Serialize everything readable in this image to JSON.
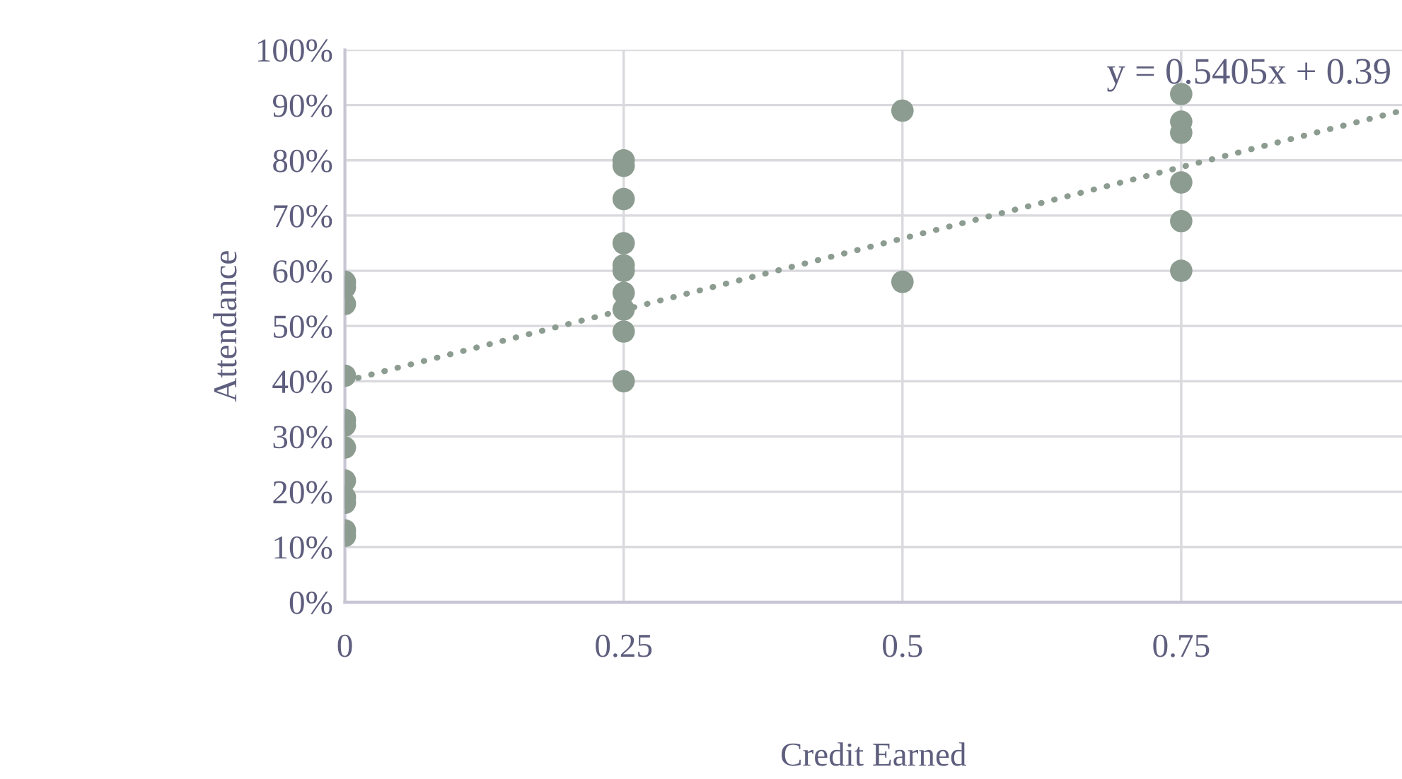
{
  "chart_data": {
    "type": "scatter",
    "xlabel": "Credit Earned",
    "ylabel": "Attendance",
    "annotations": [
      "y = 0.5405x + 0.39"
    ],
    "series": [
      {
        "color": "#8c9c90",
        "x": [
          0,
          0,
          0,
          0,
          0,
          0,
          0,
          0,
          0,
          0,
          0,
          0,
          0.25,
          0.25,
          0.25,
          0.25,
          0.25,
          0.25,
          0.25,
          0.25,
          0.25,
          0.25,
          0.5,
          0.5,
          0.75,
          0.75,
          0.75,
          0.75,
          0.75,
          0.75
        ],
        "values": [
          0.58,
          0.57,
          0.54,
          0.41,
          0.33,
          0.32,
          0.28,
          0.22,
          0.19,
          0.18,
          0.13,
          0.12,
          0.8,
          0.79,
          0.73,
          0.65,
          0.61,
          0.6,
          0.56,
          0.53,
          0.49,
          0.4,
          0.89,
          0.58,
          0.92,
          0.87,
          0.85,
          0.76,
          0.69,
          0.6
        ]
      },
      {
        "type": "line",
        "color": "#8c9c90",
        "line_style": "dotted",
        "x": [
          0,
          0.948
        ],
        "values": [
          0.4,
          0.89
        ]
      }
    ],
    "xlim": [
      0,
      0.948
    ],
    "xticks": [
      0,
      0.25,
      0.5,
      0.75
    ],
    "ylim": [
      0,
      1
    ],
    "yticks": [
      {
        "value": 0,
        "label": "0%"
      },
      {
        "value": 0.1,
        "label": "10%"
      },
      {
        "value": 0.2,
        "label": "20%"
      },
      {
        "value": 0.3,
        "label": "30%"
      },
      {
        "value": 0.4,
        "label": "40%"
      },
      {
        "value": 0.5,
        "label": "50%"
      },
      {
        "value": 0.6,
        "label": "60%"
      },
      {
        "value": 0.7,
        "label": "70%"
      },
      {
        "value": 0.8,
        "label": "80%"
      },
      {
        "value": 0.9,
        "label": "90%"
      },
      {
        "value": 1,
        "label": "100%"
      }
    ],
    "grid": true,
    "legend": false
  }
}
